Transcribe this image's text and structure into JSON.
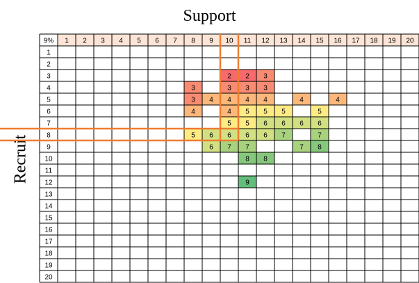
{
  "chart_data": {
    "type": "heatmap",
    "title": "Support",
    "xlabel": "Support",
    "ylabel": "Recruit",
    "corner_label": "9%",
    "x": [
      1,
      2,
      3,
      4,
      5,
      6,
      7,
      8,
      9,
      10,
      11,
      12,
      13,
      14,
      15,
      16,
      17,
      18,
      19,
      20
    ],
    "y": [
      1,
      2,
      3,
      4,
      5,
      6,
      7,
      8,
      9,
      10,
      11,
      12,
      13,
      14,
      15,
      16,
      17,
      18,
      19,
      20
    ],
    "cells": [
      {
        "x": 10,
        "y": 3,
        "v": 2
      },
      {
        "x": 11,
        "y": 3,
        "v": 2
      },
      {
        "x": 12,
        "y": 3,
        "v": 3
      },
      {
        "x": 8,
        "y": 4,
        "v": 3
      },
      {
        "x": 10,
        "y": 4,
        "v": 3
      },
      {
        "x": 11,
        "y": 4,
        "v": 3
      },
      {
        "x": 12,
        "y": 4,
        "v": 3
      },
      {
        "x": 8,
        "y": 5,
        "v": 3
      },
      {
        "x": 9,
        "y": 5,
        "v": 4
      },
      {
        "x": 10,
        "y": 5,
        "v": 4
      },
      {
        "x": 11,
        "y": 5,
        "v": 4
      },
      {
        "x": 12,
        "y": 5,
        "v": 4
      },
      {
        "x": 14,
        "y": 5,
        "v": 4
      },
      {
        "x": 16,
        "y": 5,
        "v": 4
      },
      {
        "x": 8,
        "y": 6,
        "v": 4
      },
      {
        "x": 10,
        "y": 6,
        "v": 4
      },
      {
        "x": 11,
        "y": 6,
        "v": 5
      },
      {
        "x": 12,
        "y": 6,
        "v": 5
      },
      {
        "x": 13,
        "y": 6,
        "v": 5
      },
      {
        "x": 15,
        "y": 6,
        "v": 5
      },
      {
        "x": 10,
        "y": 7,
        "v": 5
      },
      {
        "x": 11,
        "y": 7,
        "v": 5
      },
      {
        "x": 12,
        "y": 7,
        "v": 6
      },
      {
        "x": 13,
        "y": 7,
        "v": 6
      },
      {
        "x": 14,
        "y": 7,
        "v": 6
      },
      {
        "x": 15,
        "y": 7,
        "v": 6
      },
      {
        "x": 8,
        "y": 8,
        "v": 5
      },
      {
        "x": 9,
        "y": 8,
        "v": 6
      },
      {
        "x": 10,
        "y": 8,
        "v": 6
      },
      {
        "x": 11,
        "y": 8,
        "v": 6
      },
      {
        "x": 12,
        "y": 8,
        "v": 6
      },
      {
        "x": 13,
        "y": 8,
        "v": 7
      },
      {
        "x": 15,
        "y": 8,
        "v": 7
      },
      {
        "x": 9,
        "y": 9,
        "v": 6
      },
      {
        "x": 10,
        "y": 9,
        "v": 7
      },
      {
        "x": 11,
        "y": 9,
        "v": 7
      },
      {
        "x": 14,
        "y": 9,
        "v": 7
      },
      {
        "x": 15,
        "y": 9,
        "v": 8
      },
      {
        "x": 11,
        "y": 10,
        "v": 8
      },
      {
        "x": 12,
        "y": 10,
        "v": 8
      },
      {
        "x": 11,
        "y": 12,
        "v": 9
      }
    ],
    "colors": {
      "2": "#f8696b",
      "3": "#f98b72",
      "4": "#fcb77a",
      "5": "#ffeb84",
      "6": "#d2e081",
      "7": "#a9d27f",
      "8": "#85c77c",
      "9": "#63be7b",
      "header_fill": "#fce4d6",
      "grid": "#000000",
      "highlight": "#ed7d31"
    },
    "highlight": {
      "x": 10,
      "y": 8
    }
  }
}
